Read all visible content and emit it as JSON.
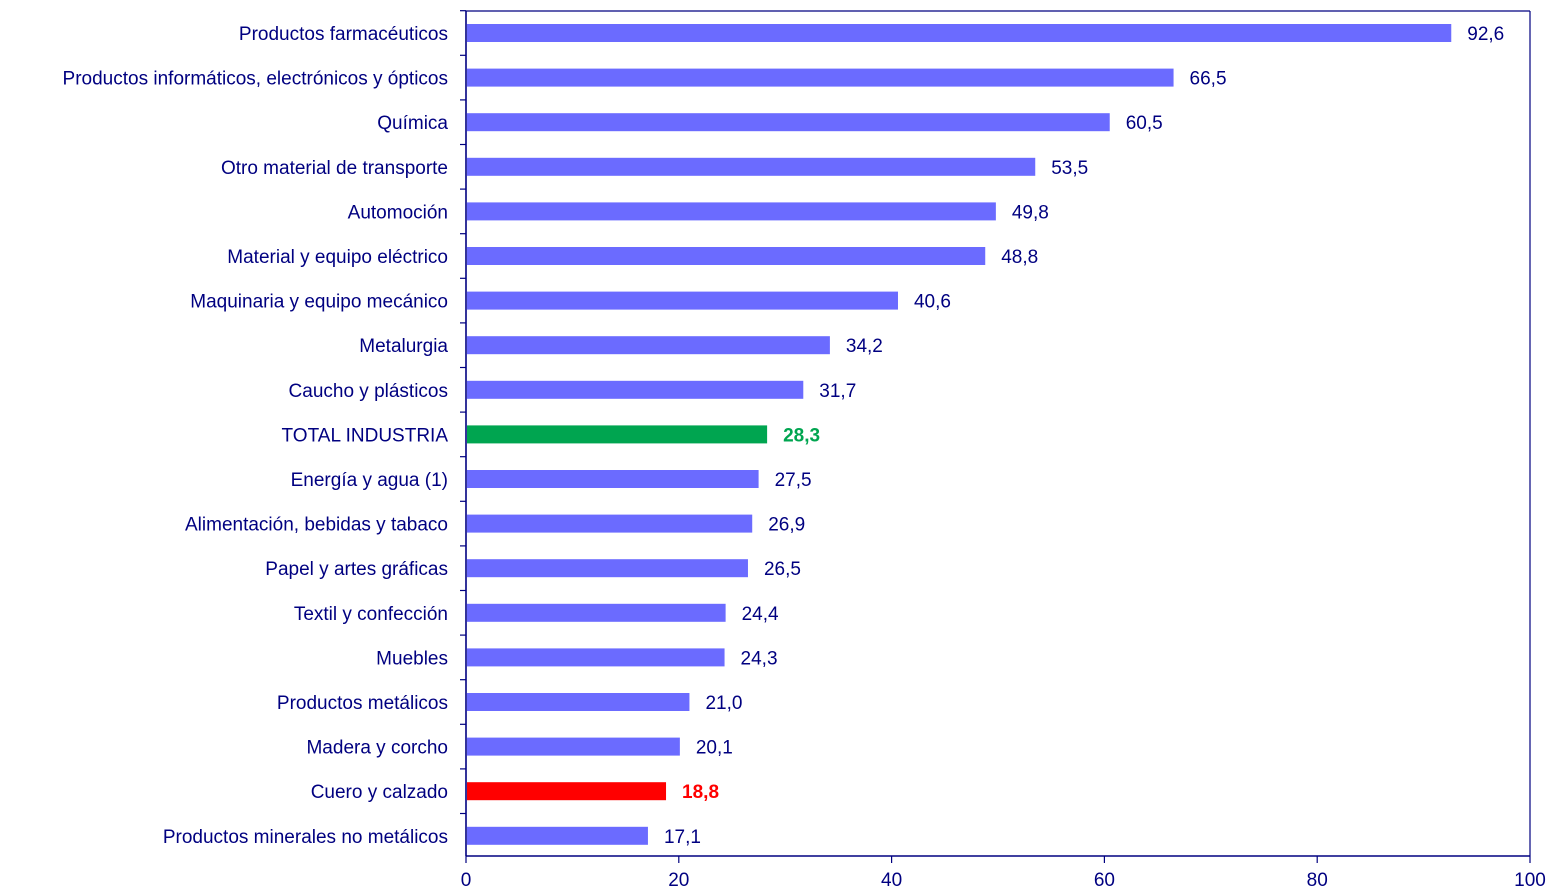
{
  "chart_data": {
    "type": "bar",
    "orientation": "horizontal",
    "title": "",
    "xlabel": "",
    "ylabel": "",
    "xlim": [
      0,
      100
    ],
    "x_ticks": [
      0,
      20,
      40,
      60,
      80,
      100
    ],
    "grid": false,
    "legend": "none",
    "colors": {
      "default_bar": "#6B6BFF",
      "total_bar": "#00A550",
      "lowest_bar": "#FF0000",
      "text": "#000080",
      "axis": "#000080"
    },
    "categories": [
      "Productos farmacéuticos",
      "Productos informáticos, electrónicos y ópticos",
      "Química",
      "Otro material de transporte",
      "Automoción",
      "Material y equipo eléctrico",
      "Maquinaria y equipo mecánico",
      "Metalurgia",
      "Caucho y plásticos",
      "TOTAL INDUSTRIA",
      "Energía y agua (1)",
      "Alimentación, bebidas y tabaco",
      "Papel y artes gráficas",
      "Textil y confección",
      "Muebles",
      "Productos metálicos",
      "Madera y corcho",
      "Cuero y calzado",
      "Productos minerales no metálicos"
    ],
    "values": [
      92.6,
      66.5,
      60.5,
      53.5,
      49.8,
      48.8,
      40.6,
      34.2,
      31.7,
      28.3,
      27.5,
      26.9,
      26.5,
      24.4,
      24.3,
      21.0,
      20.1,
      18.8,
      17.1
    ],
    "value_labels": [
      "92,6",
      "66,5",
      "60,5",
      "53,5",
      "49,8",
      "48,8",
      "40,6",
      "34,2",
      "31,7",
      "28,3",
      "27,5",
      "26,9",
      "26,5",
      "24,4",
      "24,3",
      "21,0",
      "20,1",
      "18,8",
      "17,1"
    ],
    "highlight": {
      "TOTAL INDUSTRIA": "total",
      "Cuero y calzado": "lowest"
    }
  }
}
